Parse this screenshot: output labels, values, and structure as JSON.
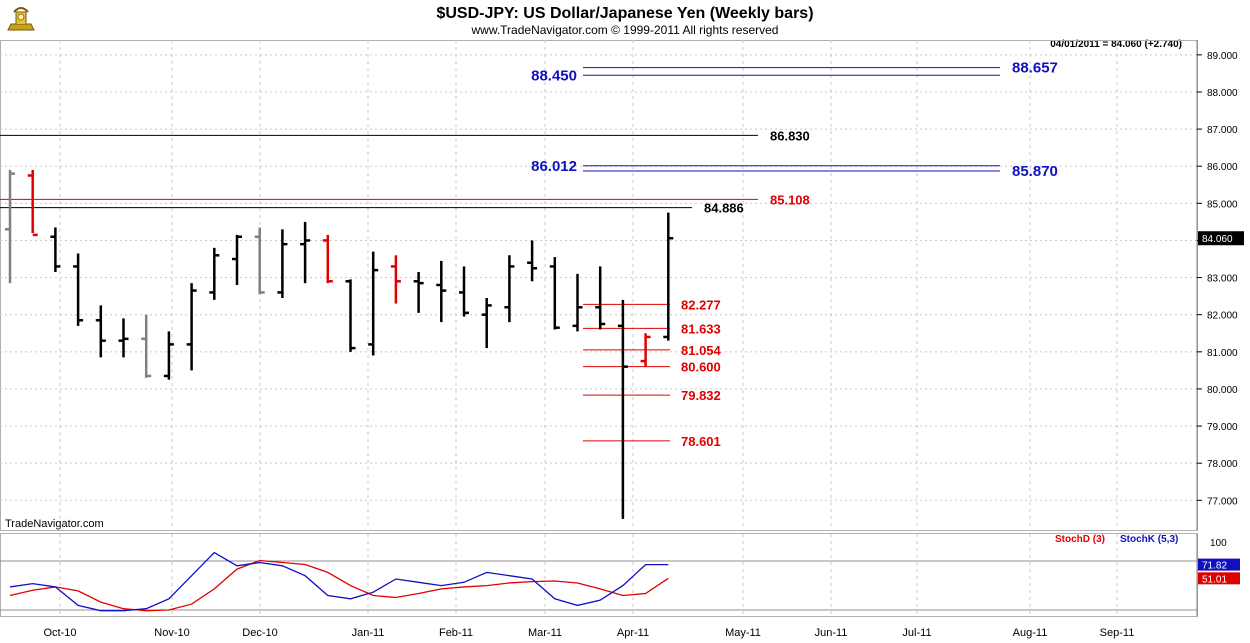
{
  "header": {
    "title": "$USD-JPY:  US Dollar/Japanese Yen  (Weekly bars)",
    "subtitle": "www.TradeNavigator.com © 1999-2011 All rights reserved",
    "last_quote": "04/01/2011 = 84.060 (+2.740)",
    "watermark": "TradeNavigator.com"
  },
  "colors": {
    "up": "#000000",
    "down_red": "#e00000",
    "neutral": "#808080",
    "blue_line": "#1010c0",
    "red_line": "#e00000",
    "stoch_d": "#e00000",
    "stoch_k": "#1010c0",
    "grid": "#c8c8c8"
  },
  "chart_data": [
    {
      "type": "ohlc",
      "title": "$USD-JPY:  US Dollar/Japanese Yen  (Weekly bars)",
      "ylim": [
        76.2,
        89.4
      ],
      "yticks": [
        "77.000",
        "78.000",
        "79.000",
        "80.000",
        "81.000",
        "82.000",
        "83.000",
        "84.000",
        "85.000",
        "86.000",
        "87.000",
        "88.000",
        "89.000"
      ],
      "x_labels": [
        "Oct-10",
        "Nov-10",
        "Dec-10",
        "Jan-11",
        "Feb-11",
        "Mar-11",
        "Apr-11",
        "May-11",
        "Jun-11",
        "Jul-11",
        "Aug-11",
        "Sep-11"
      ],
      "last_price_label": "84.060",
      "bars": [
        {
          "o": 84.3,
          "h": 85.9,
          "l": 82.85,
          "c": 85.8,
          "color": "neutral"
        },
        {
          "o": 85.75,
          "h": 85.9,
          "l": 84.2,
          "c": 84.15,
          "color": "down_red"
        },
        {
          "o": 84.1,
          "h": 84.35,
          "l": 83.15,
          "c": 83.3,
          "color": "up"
        },
        {
          "o": 83.3,
          "h": 83.65,
          "l": 81.7,
          "c": 81.85,
          "color": "up"
        },
        {
          "o": 81.85,
          "h": 82.25,
          "l": 80.85,
          "c": 81.3,
          "color": "up"
        },
        {
          "o": 81.3,
          "h": 81.9,
          "l": 80.85,
          "c": 81.35,
          "color": "up"
        },
        {
          "o": 81.35,
          "h": 82.0,
          "l": 80.3,
          "c": 80.35,
          "color": "neutral"
        },
        {
          "o": 80.35,
          "h": 81.55,
          "l": 80.25,
          "c": 81.2,
          "color": "up"
        },
        {
          "o": 81.2,
          "h": 82.85,
          "l": 80.5,
          "c": 82.65,
          "color": "up"
        },
        {
          "o": 82.6,
          "h": 83.8,
          "l": 82.4,
          "c": 83.6,
          "color": "up"
        },
        {
          "o": 83.5,
          "h": 84.15,
          "l": 82.8,
          "c": 84.1,
          "color": "up"
        },
        {
          "o": 84.1,
          "h": 84.35,
          "l": 82.55,
          "c": 82.6,
          "color": "neutral"
        },
        {
          "o": 82.6,
          "h": 84.3,
          "l": 82.45,
          "c": 83.9,
          "color": "up"
        },
        {
          "o": 83.9,
          "h": 84.5,
          "l": 82.85,
          "c": 84.0,
          "color": "up"
        },
        {
          "o": 84.0,
          "h": 84.15,
          "l": 82.85,
          "c": 82.9,
          "color": "down_red"
        },
        {
          "o": 82.9,
          "h": 82.95,
          "l": 81.0,
          "c": 81.1,
          "color": "up"
        },
        {
          "o": 81.2,
          "h": 83.7,
          "l": 80.9,
          "c": 83.2,
          "color": "up"
        },
        {
          "o": 83.3,
          "h": 83.6,
          "l": 82.3,
          "c": 82.9,
          "color": "down_red"
        },
        {
          "o": 82.9,
          "h": 83.15,
          "l": 82.05,
          "c": 82.85,
          "color": "up"
        },
        {
          "o": 82.8,
          "h": 83.45,
          "l": 81.8,
          "c": 82.65,
          "color": "up"
        },
        {
          "o": 82.6,
          "h": 83.3,
          "l": 81.95,
          "c": 82.05,
          "color": "up"
        },
        {
          "o": 82.0,
          "h": 82.45,
          "l": 81.1,
          "c": 82.25,
          "color": "up"
        },
        {
          "o": 82.2,
          "h": 83.6,
          "l": 81.8,
          "c": 83.3,
          "color": "up"
        },
        {
          "o": 83.4,
          "h": 84.0,
          "l": 82.9,
          "c": 83.25,
          "color": "up"
        },
        {
          "o": 83.3,
          "h": 83.55,
          "l": 81.6,
          "c": 81.65,
          "color": "up"
        },
        {
          "o": 81.7,
          "h": 83.1,
          "l": 81.55,
          "c": 82.2,
          "color": "up"
        },
        {
          "o": 82.2,
          "h": 83.3,
          "l": 81.6,
          "c": 81.75,
          "color": "up"
        },
        {
          "o": 81.7,
          "h": 82.4,
          "l": 76.5,
          "c": 80.6,
          "color": "up"
        },
        {
          "o": 80.75,
          "h": 81.5,
          "l": 80.6,
          "c": 81.4,
          "color": "down_red"
        },
        {
          "o": 81.4,
          "h": 84.75,
          "l": 81.3,
          "c": 84.06,
          "color": "up"
        }
      ],
      "levels": [
        {
          "value": 88.657,
          "label": "88.657",
          "color": "blue_line"
        },
        {
          "value": 88.45,
          "label": "88.450",
          "color": "blue_line"
        },
        {
          "value": 86.83,
          "label": "86.830",
          "color": "up"
        },
        {
          "value": 86.012,
          "label": "86.012",
          "color": "blue_line"
        },
        {
          "value": 85.87,
          "label": "85.870",
          "color": "blue_line"
        },
        {
          "value": 85.108,
          "label": "85.108",
          "color": "red_line"
        },
        {
          "value": 84.886,
          "label": "84.886",
          "color": "up"
        },
        {
          "value": 82.277,
          "label": "82.277",
          "color": "red_line"
        },
        {
          "value": 81.633,
          "label": "81.633",
          "color": "red_line"
        },
        {
          "value": 81.054,
          "label": "81.054",
          "color": "red_line"
        },
        {
          "value": 80.6,
          "label": "80.600",
          "color": "red_line"
        },
        {
          "value": 79.832,
          "label": "79.832",
          "color": "red_line"
        },
        {
          "value": 78.601,
          "label": "78.601",
          "color": "red_line"
        }
      ]
    },
    {
      "type": "line",
      "ylim": [
        0,
        100
      ],
      "ytick_label": "100",
      "series": [
        {
          "name": "StochD (3)",
          "color": "stoch_d",
          "last_label": "51.01",
          "values": [
            25,
            33,
            38,
            32,
            15,
            5,
            2,
            3,
            12,
            35,
            65,
            78,
            75,
            72,
            60,
            40,
            25,
            22,
            28,
            35,
            38,
            40,
            44,
            46,
            47,
            44,
            35,
            25,
            28,
            51.01
          ]
        },
        {
          "name": "StochK (5,3)",
          "color": "stoch_k",
          "last_label": "71.82",
          "values": [
            38,
            43,
            38,
            10,
            2,
            2,
            5,
            20,
            55,
            90,
            70,
            75,
            70,
            55,
            25,
            20,
            30,
            50,
            45,
            40,
            45,
            60,
            55,
            50,
            20,
            10,
            18,
            40,
            71.82,
            71.82
          ]
        }
      ]
    }
  ]
}
